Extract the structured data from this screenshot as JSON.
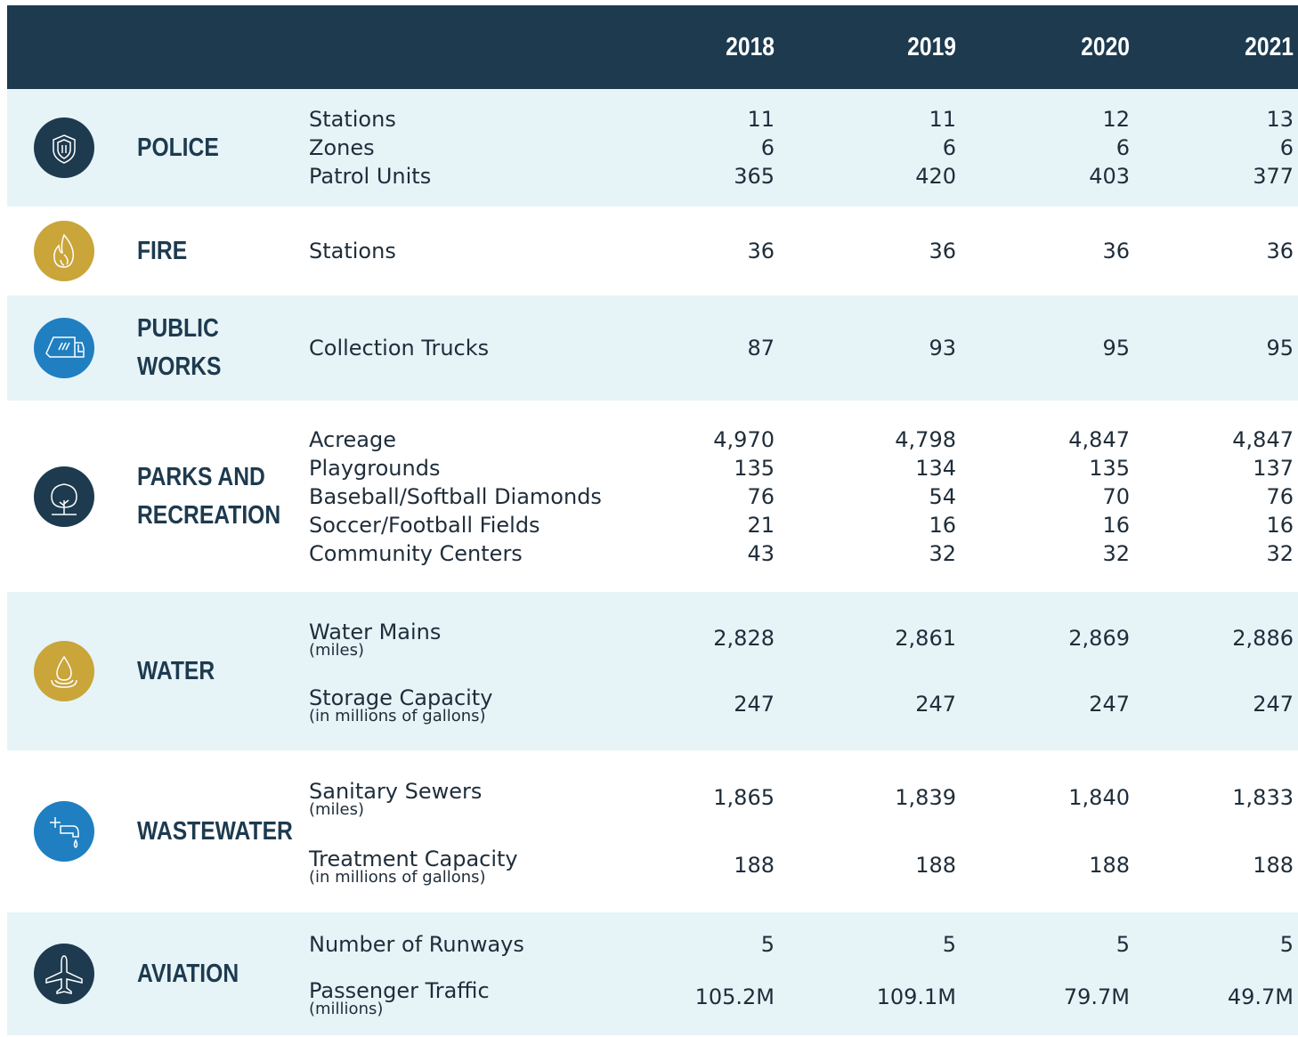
{
  "header": {
    "years": [
      "2018",
      "2019",
      "2020",
      "2021"
    ]
  },
  "sections": [
    {
      "name_lines": [
        "POLICE"
      ],
      "items": [
        {
          "label": "Stations",
          "values": [
            "11",
            "11",
            "12",
            "13"
          ]
        },
        {
          "label": "Zones",
          "values": [
            "6",
            "6",
            "6",
            "6"
          ]
        },
        {
          "label": "Patrol Units",
          "values": [
            "365",
            "420",
            "403",
            "377"
          ]
        }
      ]
    },
    {
      "name_lines": [
        "FIRE"
      ],
      "items": [
        {
          "label": "Stations",
          "values": [
            "36",
            "36",
            "36",
            "36"
          ]
        }
      ]
    },
    {
      "name_lines": [
        "PUBLIC",
        "WORKS"
      ],
      "items": [
        {
          "label": "Collection Trucks",
          "values": [
            "87",
            "93",
            "95",
            "95"
          ]
        }
      ]
    },
    {
      "name_lines": [
        "PARKS AND",
        "RECREATION"
      ],
      "items": [
        {
          "label": "Acreage",
          "values": [
            "4,970",
            "4,798",
            "4,847",
            "4,847"
          ]
        },
        {
          "label": "Playgrounds",
          "values": [
            "135",
            "134",
            "135",
            "137"
          ]
        },
        {
          "label": "Baseball/Softball Diamonds",
          "values": [
            "76",
            "54",
            "70",
            "76"
          ]
        },
        {
          "label": "Soccer/Football Fields",
          "values": [
            "21",
            "16",
            "16",
            "16"
          ]
        },
        {
          "label": "Community Centers",
          "values": [
            "43",
            "32",
            "32",
            "32"
          ]
        }
      ]
    },
    {
      "name_lines": [
        "WATER"
      ],
      "items": [
        {
          "label": "Water Mains",
          "note": "(miles)",
          "values": [
            "2,828",
            "2,861",
            "2,869",
            "2,886"
          ]
        },
        {
          "label": "Storage Capacity",
          "note": "(in millions of gallons)",
          "values": [
            "247",
            "247",
            "247",
            "247"
          ]
        }
      ]
    },
    {
      "name_lines": [
        "WASTEWATER"
      ],
      "items": [
        {
          "label": "Sanitary Sewers",
          "note": "(miles)",
          "values": [
            "1,865",
            "1,839",
            "1,840",
            "1,833"
          ]
        },
        {
          "label": "Treatment Capacity",
          "note": "(in millions of gallons)",
          "values": [
            "188",
            "188",
            "188",
            "188"
          ]
        }
      ]
    },
    {
      "name_lines": [
        "AVIATION"
      ],
      "items": [
        {
          "label": "Number of Runways",
          "values": [
            "5",
            "5",
            "5",
            "5"
          ]
        },
        {
          "label": "Passenger Traffic",
          "note": "(millions)",
          "values": [
            "105.2M",
            "109.1M",
            "79.7M",
            "49.7M"
          ]
        }
      ]
    }
  ]
}
